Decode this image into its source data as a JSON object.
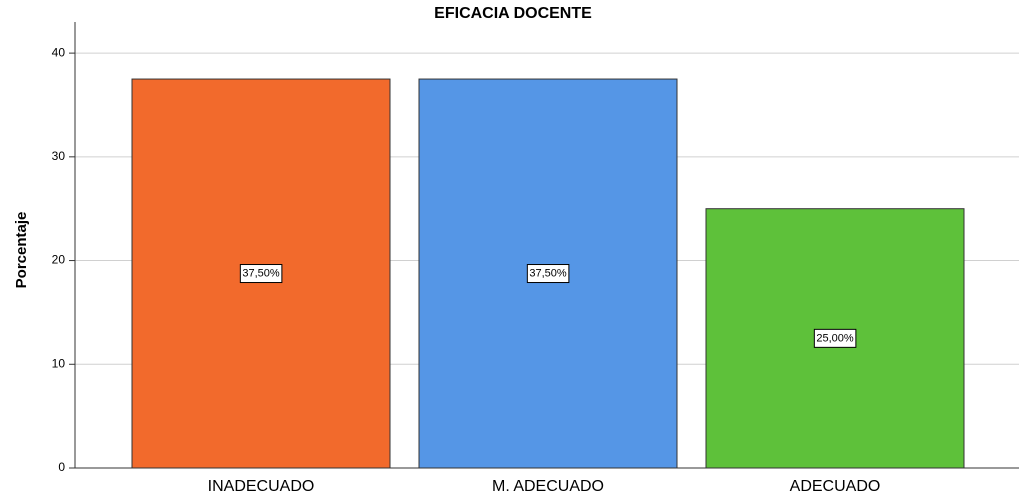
{
  "chart_data": {
    "type": "bar",
    "title": "EFICACIA DOCENTE",
    "y_label": "Porcentaje",
    "categories": [
      "INADECUADO",
      "M. ADECUADO",
      "ADECUADO"
    ],
    "values": [
      37.5,
      37.5,
      25
    ],
    "value_labels": [
      "37,50%",
      "37,50%",
      "25,00%"
    ],
    "colors": [
      "#f26a2c",
      "#5596e6",
      "#5ec13a"
    ],
    "ylim": [
      0,
      43
    ],
    "yticks": [
      0,
      10,
      20,
      30,
      40
    ],
    "grid": true
  }
}
